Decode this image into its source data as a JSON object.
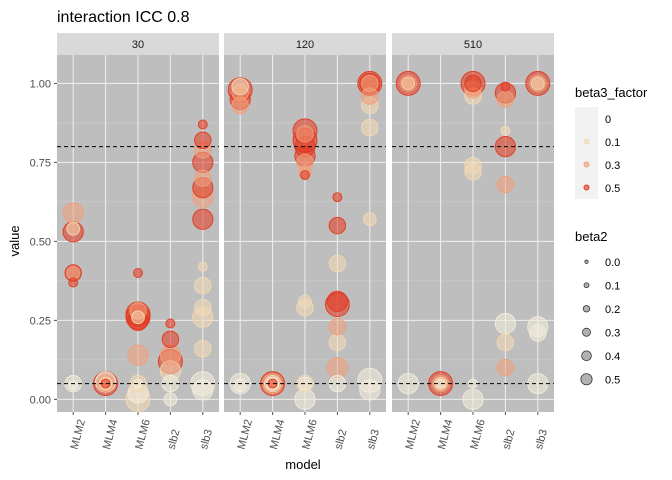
{
  "chart_data": {
    "type": "scatter",
    "title": "interaction ICC 0.8",
    "xlabel": "model",
    "ylabel": "value",
    "categories": [
      "MLM2",
      "MLM4",
      "MLM6",
      "slb2",
      "slb3"
    ],
    "ylim": [
      -0.04,
      1.09
    ],
    "yticks": [
      0.0,
      0.25,
      0.5,
      0.75,
      1.0
    ],
    "ytick_labels": [
      "0.00",
      "0.25",
      "0.50",
      "0.75",
      "1.00"
    ],
    "reference_lines": [
      0.05,
      0.8
    ],
    "grid": true,
    "panel_background": "#bebebe",
    "facet_variable_values": [
      "30",
      "120",
      "510"
    ],
    "legends": {
      "color": {
        "title": "beta3_factor",
        "position": "right",
        "entries": [
          {
            "label": "0",
            "color": "#f3ecda"
          },
          {
            "label": "0.1",
            "color": "#f2d9b3"
          },
          {
            "label": "0.3",
            "color": "#f29e78"
          },
          {
            "label": "0.5",
            "color": "#e3371e"
          }
        ]
      },
      "size": {
        "title": "beta2",
        "position": "right",
        "entries": [
          {
            "label": "0.0",
            "value": 0.0
          },
          {
            "label": "0.1",
            "value": 0.1
          },
          {
            "label": "0.2",
            "value": 0.2
          },
          {
            "label": "0.3",
            "value": 0.3
          },
          {
            "label": "0.4",
            "value": 0.4
          },
          {
            "label": "0.5",
            "value": 0.5
          }
        ]
      }
    },
    "panels": [
      {
        "facet": "30",
        "points": [
          {
            "model": "MLM2",
            "value": 0.05,
            "beta3": 0,
            "beta2": 0.3
          },
          {
            "model": "MLM2",
            "value": 0.045,
            "beta3": 0,
            "beta2": 0.1
          },
          {
            "model": "MLM2",
            "value": 0.37,
            "beta3": 0.5,
            "beta2": 0.1
          },
          {
            "model": "MLM2",
            "value": 0.4,
            "beta3": 0.3,
            "beta2": 0.2
          },
          {
            "model": "MLM2",
            "value": 0.4,
            "beta3": 0.5,
            "beta2": 0.3
          },
          {
            "model": "MLM2",
            "value": 0.53,
            "beta3": 0.5,
            "beta2": 0.4
          },
          {
            "model": "MLM2",
            "value": 0.59,
            "beta3": 0.3,
            "beta2": 0.4
          },
          {
            "model": "MLM2",
            "value": 0.54,
            "beta3": 0.1,
            "beta2": 0.2
          },
          {
            "model": "MLM4",
            "value": 0.05,
            "beta3": 0.5,
            "beta2": 0.5
          },
          {
            "model": "MLM4",
            "value": 0.05,
            "beta3": 0.3,
            "beta2": 0.3
          },
          {
            "model": "MLM4",
            "value": 0.05,
            "beta3": 0.1,
            "beta2": 0.2
          },
          {
            "model": "MLM4",
            "value": 0.055,
            "beta3": 0,
            "beta2": 0.4
          },
          {
            "model": "MLM4",
            "value": 0.05,
            "beta3": 0.5,
            "beta2": 0.1
          },
          {
            "model": "MLM6",
            "value": 0.0,
            "beta3": 0.1,
            "beta2": 0.5
          },
          {
            "model": "MLM6",
            "value": 0.02,
            "beta3": 0,
            "beta2": 0.4
          },
          {
            "model": "MLM6",
            "value": 0.05,
            "beta3": 0.1,
            "beta2": 0.3
          },
          {
            "model": "MLM6",
            "value": 0.05,
            "beta3": 0,
            "beta2": 0.1
          },
          {
            "model": "MLM6",
            "value": 0.14,
            "beta3": 0.3,
            "beta2": 0.4
          },
          {
            "model": "MLM6",
            "value": 0.25,
            "beta3": 0.5,
            "beta2": 0.4
          },
          {
            "model": "MLM6",
            "value": 0.26,
            "beta3": 0.5,
            "beta2": 0.5
          },
          {
            "model": "MLM6",
            "value": 0.27,
            "beta3": 0.5,
            "beta2": 0.5
          },
          {
            "model": "MLM6",
            "value": 0.28,
            "beta3": 0.3,
            "beta2": 0.3
          },
          {
            "model": "MLM6",
            "value": 0.26,
            "beta3": 0.1,
            "beta2": 0.2
          },
          {
            "model": "MLM6",
            "value": 0.4,
            "beta3": 0.5,
            "beta2": 0.1
          },
          {
            "model": "slb2",
            "value": 0.05,
            "beta3": 0,
            "beta2": 0.3
          },
          {
            "model": "slb2",
            "value": 0.09,
            "beta3": 0.1,
            "beta2": 0.4
          },
          {
            "model": "slb2",
            "value": 0.12,
            "beta3": 0.5,
            "beta2": 0.5
          },
          {
            "model": "slb2",
            "value": 0.14,
            "beta3": 0.3,
            "beta2": 0.4
          },
          {
            "model": "slb2",
            "value": 0.19,
            "beta3": 0.5,
            "beta2": 0.3
          },
          {
            "model": "slb2",
            "value": 0.24,
            "beta3": 0.5,
            "beta2": 0.1
          },
          {
            "model": "slb2",
            "value": 0.0,
            "beta3": 0,
            "beta2": 0.2
          },
          {
            "model": "slb3",
            "value": 0.03,
            "beta3": 0,
            "beta2": 0.4
          },
          {
            "model": "slb3",
            "value": 0.05,
            "beta3": 0,
            "beta2": 0.5
          },
          {
            "model": "slb3",
            "value": 0.16,
            "beta3": 0.1,
            "beta2": 0.3
          },
          {
            "model": "slb3",
            "value": 0.26,
            "beta3": 0.1,
            "beta2": 0.4
          },
          {
            "model": "slb3",
            "value": 0.29,
            "beta3": 0.1,
            "beta2": 0.3
          },
          {
            "model": "slb3",
            "value": 0.36,
            "beta3": 0.1,
            "beta2": 0.3
          },
          {
            "model": "slb3",
            "value": 0.42,
            "beta3": 0.1,
            "beta2": 0.1
          },
          {
            "model": "slb3",
            "value": 0.57,
            "beta3": 0.5,
            "beta2": 0.4
          },
          {
            "model": "slb3",
            "value": 0.64,
            "beta3": 0.3,
            "beta2": 0.4
          },
          {
            "model": "slb3",
            "value": 0.67,
            "beta3": 0.5,
            "beta2": 0.4
          },
          {
            "model": "slb3",
            "value": 0.7,
            "beta3": 0.3,
            "beta2": 0.3
          },
          {
            "model": "slb3",
            "value": 0.75,
            "beta3": 0.5,
            "beta2": 0.4
          },
          {
            "model": "slb3",
            "value": 0.79,
            "beta3": 0.3,
            "beta2": 0.3
          },
          {
            "model": "slb3",
            "value": 0.82,
            "beta3": 0.5,
            "beta2": 0.3
          },
          {
            "model": "slb3",
            "value": 0.87,
            "beta3": 0.5,
            "beta2": 0.1
          }
        ]
      },
      {
        "facet": "120",
        "points": [
          {
            "model": "MLM2",
            "value": 0.05,
            "beta3": 0,
            "beta2": 0.4
          },
          {
            "model": "MLM2",
            "value": 0.045,
            "beta3": 0,
            "beta2": 0.2
          },
          {
            "model": "MLM2",
            "value": 0.93,
            "beta3": 0.3,
            "beta2": 0.3
          },
          {
            "model": "MLM2",
            "value": 0.95,
            "beta3": 0.5,
            "beta2": 0.4
          },
          {
            "model": "MLM2",
            "value": 0.97,
            "beta3": 0.3,
            "beta2": 0.3
          },
          {
            "model": "MLM2",
            "value": 0.98,
            "beta3": 0.5,
            "beta2": 0.5
          },
          {
            "model": "MLM2",
            "value": 0.99,
            "beta3": 0.1,
            "beta2": 0.3
          },
          {
            "model": "MLM4",
            "value": 0.05,
            "beta3": 0.5,
            "beta2": 0.5
          },
          {
            "model": "MLM4",
            "value": 0.05,
            "beta3": 0.3,
            "beta2": 0.4
          },
          {
            "model": "MLM4",
            "value": 0.05,
            "beta3": 0.1,
            "beta2": 0.3
          },
          {
            "model": "MLM4",
            "value": 0.05,
            "beta3": 0,
            "beta2": 0.2
          },
          {
            "model": "MLM4",
            "value": 0.05,
            "beta3": 0.5,
            "beta2": 0.1
          },
          {
            "model": "MLM6",
            "value": 0.0,
            "beta3": 0,
            "beta2": 0.4
          },
          {
            "model": "MLM6",
            "value": 0.05,
            "beta3": 0.1,
            "beta2": 0.3
          },
          {
            "model": "MLM6",
            "value": 0.05,
            "beta3": 0,
            "beta2": 0.2
          },
          {
            "model": "MLM6",
            "value": 0.29,
            "beta3": 0.1,
            "beta2": 0.3
          },
          {
            "model": "MLM6",
            "value": 0.31,
            "beta3": 0.1,
            "beta2": 0.2
          },
          {
            "model": "MLM6",
            "value": 0.71,
            "beta3": 0.5,
            "beta2": 0.1
          },
          {
            "model": "MLM6",
            "value": 0.72,
            "beta3": 0.3,
            "beta2": 0.2
          },
          {
            "model": "MLM6",
            "value": 0.75,
            "beta3": 0.3,
            "beta2": 0.3
          },
          {
            "model": "MLM6",
            "value": 0.77,
            "beta3": 0.5,
            "beta2": 0.4
          },
          {
            "model": "MLM6",
            "value": 0.8,
            "beta3": 0.5,
            "beta2": 0.4
          },
          {
            "model": "MLM6",
            "value": 0.82,
            "beta3": 0.5,
            "beta2": 0.5
          },
          {
            "model": "MLM6",
            "value": 0.85,
            "beta3": 0.5,
            "beta2": 0.5
          },
          {
            "model": "MLM6",
            "value": 0.84,
            "beta3": 0.3,
            "beta2": 0.3
          },
          {
            "model": "slb2",
            "value": 0.05,
            "beta3": 0,
            "beta2": 0.3
          },
          {
            "model": "slb2",
            "value": 0.1,
            "beta3": 0.3,
            "beta2": 0.4
          },
          {
            "model": "slb2",
            "value": 0.18,
            "beta3": 0.1,
            "beta2": 0.3
          },
          {
            "model": "slb2",
            "value": 0.23,
            "beta3": 0.3,
            "beta2": 0.3
          },
          {
            "model": "slb2",
            "value": 0.3,
            "beta3": 0.5,
            "beta2": 0.5
          },
          {
            "model": "slb2",
            "value": 0.31,
            "beta3": 0.5,
            "beta2": 0.4
          },
          {
            "model": "slb2",
            "value": 0.43,
            "beta3": 0.1,
            "beta2": 0.3
          },
          {
            "model": "slb2",
            "value": 0.55,
            "beta3": 0.5,
            "beta2": 0.3
          },
          {
            "model": "slb2",
            "value": 0.64,
            "beta3": 0.5,
            "beta2": 0.1
          },
          {
            "model": "slb3",
            "value": 0.03,
            "beta3": 0,
            "beta2": 0.4
          },
          {
            "model": "slb3",
            "value": 0.06,
            "beta3": 0,
            "beta2": 0.5
          },
          {
            "model": "slb3",
            "value": 0.57,
            "beta3": 0.1,
            "beta2": 0.2
          },
          {
            "model": "slb3",
            "value": 0.86,
            "beta3": 0.1,
            "beta2": 0.3
          },
          {
            "model": "slb3",
            "value": 0.93,
            "beta3": 0.1,
            "beta2": 0.3
          },
          {
            "model": "slb3",
            "value": 0.96,
            "beta3": 0.3,
            "beta2": 0.3
          },
          {
            "model": "slb3",
            "value": 1.0,
            "beta3": 0.5,
            "beta2": 0.5
          },
          {
            "model": "slb3",
            "value": 1.0,
            "beta3": 0.5,
            "beta2": 0.4
          },
          {
            "model": "slb3",
            "value": 1.0,
            "beta3": 0.3,
            "beta2": 0.3
          }
        ]
      },
      {
        "facet": "510",
        "points": [
          {
            "model": "MLM2",
            "value": 0.05,
            "beta3": 0,
            "beta2": 0.4
          },
          {
            "model": "MLM2",
            "value": 1.0,
            "beta3": 0.5,
            "beta2": 0.5
          },
          {
            "model": "MLM2",
            "value": 1.0,
            "beta3": 0.5,
            "beta2": 0.3
          },
          {
            "model": "MLM2",
            "value": 1.0,
            "beta3": 0.3,
            "beta2": 0.3
          },
          {
            "model": "MLM2",
            "value": 1.0,
            "beta3": 0.1,
            "beta2": 0.2
          },
          {
            "model": "MLM4",
            "value": 0.05,
            "beta3": 0.5,
            "beta2": 0.5
          },
          {
            "model": "MLM4",
            "value": 0.05,
            "beta3": 0.3,
            "beta2": 0.3
          },
          {
            "model": "MLM4",
            "value": 0.05,
            "beta3": 0.1,
            "beta2": 0.2
          },
          {
            "model": "MLM4",
            "value": 0.05,
            "beta3": 0,
            "beta2": 0.1
          },
          {
            "model": "MLM6",
            "value": 0.0,
            "beta3": 0,
            "beta2": 0.4
          },
          {
            "model": "MLM6",
            "value": 0.05,
            "beta3": 0,
            "beta2": 0.1
          },
          {
            "model": "MLM6",
            "value": 0.72,
            "beta3": 0.1,
            "beta2": 0.3
          },
          {
            "model": "MLM6",
            "value": 0.74,
            "beta3": 0.1,
            "beta2": 0.3
          },
          {
            "model": "MLM6",
            "value": 0.96,
            "beta3": 0.1,
            "beta2": 0.3
          },
          {
            "model": "MLM6",
            "value": 0.98,
            "beta3": 0.3,
            "beta2": 0.3
          },
          {
            "model": "MLM6",
            "value": 1.0,
            "beta3": 0.5,
            "beta2": 0.5
          },
          {
            "model": "MLM6",
            "value": 1.0,
            "beta3": 0.5,
            "beta2": 0.3
          },
          {
            "model": "slb2",
            "value": 0.1,
            "beta3": 0.3,
            "beta2": 0.3
          },
          {
            "model": "slb2",
            "value": 0.18,
            "beta3": 0.1,
            "beta2": 0.3
          },
          {
            "model": "slb2",
            "value": 0.24,
            "beta3": 0,
            "beta2": 0.4
          },
          {
            "model": "slb2",
            "value": 0.68,
            "beta3": 0.3,
            "beta2": 0.3
          },
          {
            "model": "slb2",
            "value": 0.8,
            "beta3": 0.5,
            "beta2": 0.4
          },
          {
            "model": "slb2",
            "value": 0.85,
            "beta3": 0.1,
            "beta2": 0.1
          },
          {
            "model": "slb2",
            "value": 0.95,
            "beta3": 0.3,
            "beta2": 0.3
          },
          {
            "model": "slb2",
            "value": 0.97,
            "beta3": 0.5,
            "beta2": 0.4
          },
          {
            "model": "slb2",
            "value": 0.99,
            "beta3": 0.5,
            "beta2": 0.1
          },
          {
            "model": "slb3",
            "value": 0.05,
            "beta3": 0,
            "beta2": 0.4
          },
          {
            "model": "slb3",
            "value": 0.21,
            "beta3": 0,
            "beta2": 0.3
          },
          {
            "model": "slb3",
            "value": 0.23,
            "beta3": 0,
            "beta2": 0.4
          },
          {
            "model": "slb3",
            "value": 1.0,
            "beta3": 0.5,
            "beta2": 0.5
          },
          {
            "model": "slb3",
            "value": 1.0,
            "beta3": 0.3,
            "beta2": 0.3
          },
          {
            "model": "slb3",
            "value": 1.0,
            "beta3": 0.1,
            "beta2": 0.2
          }
        ]
      }
    ]
  }
}
